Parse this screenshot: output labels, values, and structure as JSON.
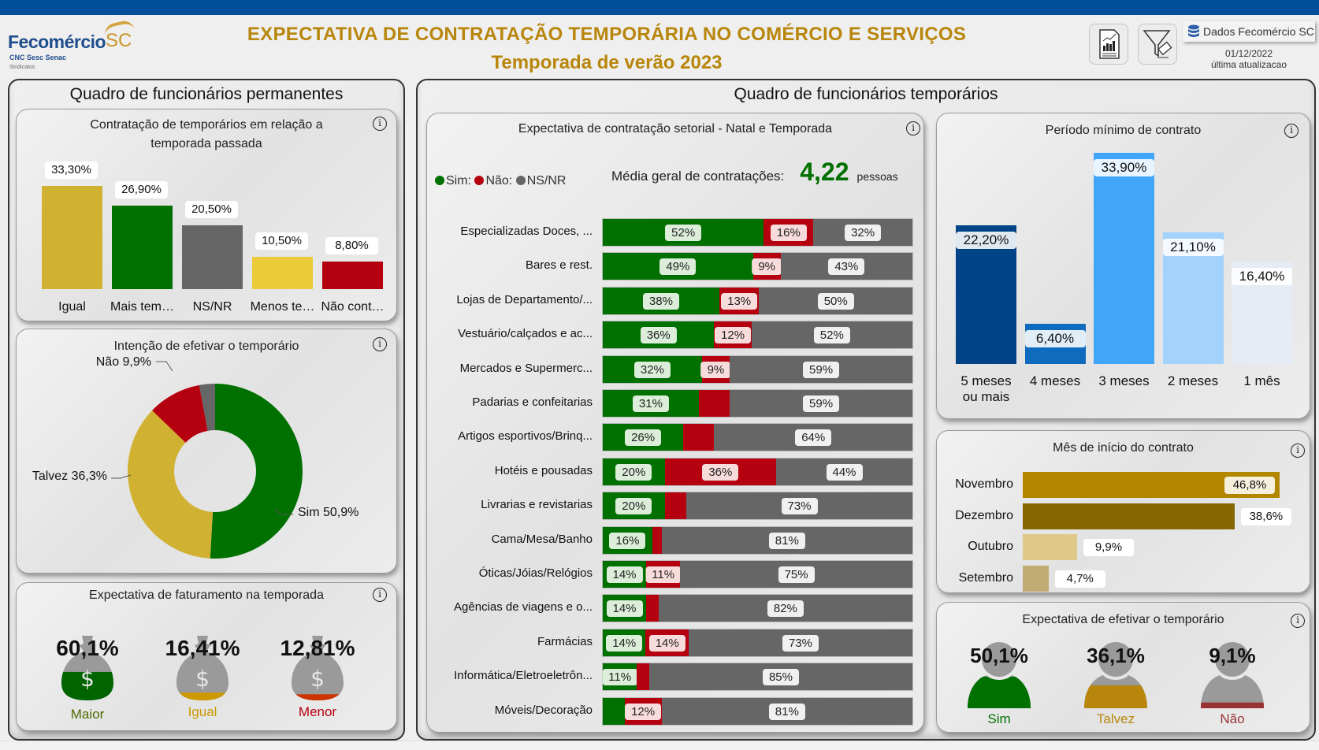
{
  "header": {
    "logo": {
      "name": "Fecomércio",
      "region": "SC",
      "sub": "CNC Sesc Senac",
      "sub2": "Sindicatos"
    },
    "title": "EXPECTATIVA DE CONTRATAÇÃO TEMPORÁRIA NO COMÉRCIO E SERVIÇOS",
    "subtitle": "Temporada de verão 2023",
    "buttons": [
      {
        "icon": "report-chart-icon"
      },
      {
        "icon": "clear-filter-icon"
      }
    ],
    "data_source": "Dados Fecomércio SC",
    "update_date": "01/12/2022",
    "update_label": "última atualizacao"
  },
  "colors": {
    "brand_blue": "#004f9b",
    "gold_title": "#b8860b",
    "sim": "#007000",
    "nao": "#b5000f",
    "nsnr": "#666666",
    "talvez": "#d1b131"
  },
  "left_panel": {
    "title": "Quadro de funcionários permanentes",
    "comparison": {
      "title_line1": "Contratação de temporários em relação a",
      "title_line2": "temporada passada",
      "info": "i"
    },
    "intention": {
      "title": "Intenção de efetivar o temporário",
      "info": "i"
    },
    "revenue": {
      "title": "Expectativa de faturamento na temporada",
      "info": "i",
      "items": [
        {
          "value": "60,1%",
          "label": "Maior",
          "fill": 0.601,
          "color": "#006400",
          "label_color": "#4d6b00"
        },
        {
          "value": "16,41%",
          "label": "Igual",
          "fill": 0.1641,
          "color": "#cc9900",
          "label_color": "#cc9900"
        },
        {
          "value": "12,81%",
          "label": "Menor",
          "fill": 0.1281,
          "color": "#cc3300",
          "label_color": "#b5000f"
        }
      ]
    }
  },
  "right_panel": {
    "title": "Quadro de funcionários temporários",
    "sector": {
      "title": "Expectativa de contratação setorial - Natal e Temporada",
      "info": "i",
      "legend": [
        {
          "label": "Sim:",
          "color": "#007000"
        },
        {
          "label": "Não:",
          "color": "#b5000f"
        },
        {
          "label": "NS/NR",
          "color": "#666666"
        }
      ],
      "avg_label": "Média geral de contratações:",
      "avg_value": "4,22",
      "avg_unit": "pessoas"
    },
    "period": {
      "title": "Período mínimo de contrato",
      "info": "i"
    },
    "month": {
      "title": "Mês de início do contrato",
      "info": "i"
    },
    "efetivar": {
      "title": "Expectativa de efetivar o temporário",
      "info": "i",
      "items": [
        {
          "value": "50,1%",
          "label": "Sim",
          "fill": 0.501,
          "color": "#007000"
        },
        {
          "value": "36,1%",
          "label": "Talvez",
          "fill": 0.361,
          "color": "#b8860b"
        },
        {
          "value": "9,1%",
          "label": "Não",
          "fill": 0.091,
          "color": "#993333"
        }
      ]
    }
  },
  "chart_data": [
    {
      "id": "comparison",
      "type": "bar",
      "title": "Contratação de temporários em relação a temporada passada",
      "categories": [
        "Igual",
        "Mais tem…",
        "NS/NR",
        "Menos te…",
        "Não cont…"
      ],
      "values": [
        33.3,
        26.9,
        20.5,
        10.5,
        8.8
      ],
      "labels": [
        "33,30%",
        "26,90%",
        "20,50%",
        "10,50%",
        "8,80%"
      ],
      "colors": [
        "#d1b131",
        "#007000",
        "#666666",
        "#eccb38",
        "#b5000f"
      ],
      "ylim": [
        0,
        33.3
      ]
    },
    {
      "id": "intention",
      "type": "pie",
      "title": "Intenção de efetivar o temporário",
      "slices": [
        {
          "name": "Sim",
          "value": 50.9,
          "label": "Sim 50,9%",
          "color": "#007000"
        },
        {
          "name": "Talvez",
          "value": 36.3,
          "label": "Talvez 36,3%",
          "color": "#d1b131"
        },
        {
          "name": "Não",
          "value": 9.9,
          "label": "Não 9,9%",
          "color": "#b5000f"
        },
        {
          "name": "NS/NR",
          "value": 2.9,
          "label": "",
          "color": "#666666"
        }
      ],
      "donut": true
    },
    {
      "id": "sector",
      "type": "bar",
      "stacked": true,
      "orientation": "horizontal",
      "title": "Expectativa de contratação setorial - Natal e Temporada",
      "categories": [
        "Especializadas Doces, ...",
        "Bares e rest.",
        "Lojas de Departamento/...",
        "Vestuário/calçados e ac...",
        "Mercados e Supermerc...",
        "Padarias e confeitarias",
        "Artigos esportivos/Brinq...",
        "Hotéis e pousadas",
        "Livrarias e revistarias",
        "Cama/Mesa/Banho",
        "Óticas/Jóias/Relógios",
        "Agências de viagens e o...",
        "Farmácias",
        "Informática/Eletroeletrôn...",
        "Móveis/Decoração"
      ],
      "series": [
        {
          "name": "Sim",
          "color": "#007000",
          "values": [
            52,
            49,
            38,
            36,
            32,
            31,
            26,
            20,
            20,
            16,
            14,
            14,
            14,
            11,
            7
          ],
          "show": [
            true,
            true,
            true,
            true,
            true,
            true,
            true,
            true,
            true,
            true,
            true,
            true,
            true,
            true,
            false
          ]
        },
        {
          "name": "Não",
          "color": "#b5000f",
          "values": [
            16,
            9,
            13,
            12,
            9,
            10,
            10,
            36,
            7,
            3,
            11,
            4,
            14,
            4,
            12
          ],
          "show": [
            true,
            true,
            true,
            true,
            true,
            false,
            false,
            true,
            false,
            false,
            true,
            false,
            true,
            false,
            true
          ]
        },
        {
          "name": "NS/NR",
          "color": "#666666",
          "values": [
            32,
            43,
            50,
            52,
            59,
            59,
            64,
            44,
            73,
            81,
            75,
            82,
            73,
            85,
            81
          ],
          "show": [
            true,
            true,
            true,
            true,
            true,
            true,
            true,
            true,
            true,
            true,
            true,
            true,
            true,
            true,
            true
          ]
        }
      ],
      "xlim": [
        0,
        100
      ]
    },
    {
      "id": "period",
      "type": "bar",
      "title": "Período mínimo de contrato",
      "categories": [
        "5 meses ou mais",
        "4 meses",
        "3 meses",
        "2 meses",
        "1 mês"
      ],
      "category_lines": [
        [
          "5 meses",
          "ou mais"
        ],
        [
          "4 meses"
        ],
        [
          "3 meses"
        ],
        [
          "2 meses"
        ],
        [
          "1 mês"
        ]
      ],
      "values": [
        22.2,
        6.4,
        33.9,
        21.1,
        16.4
      ],
      "labels": [
        "22,20%",
        "6,40%",
        "33,90%",
        "21,10%",
        "16,40%"
      ],
      "colors": [
        "#004387",
        "#0f6bbd",
        "#41a5fa",
        "#a3d2fc",
        "#e6ecf5"
      ],
      "ylim": [
        0,
        33.9
      ]
    },
    {
      "id": "month",
      "type": "bar",
      "orientation": "horizontal",
      "title": "Mês de início do contrato",
      "categories": [
        "Novembro",
        "Dezembro",
        "Outubro",
        "Setembro"
      ],
      "values": [
        46.8,
        38.6,
        9.9,
        4.7
      ],
      "labels": [
        "46,8%",
        "38,6%",
        "9,9%",
        "4,7%"
      ],
      "colors": [
        "#b38600",
        "#866600",
        "#dec98a",
        "#c1ab74"
      ],
      "xlim": [
        0,
        46.8
      ]
    }
  ]
}
